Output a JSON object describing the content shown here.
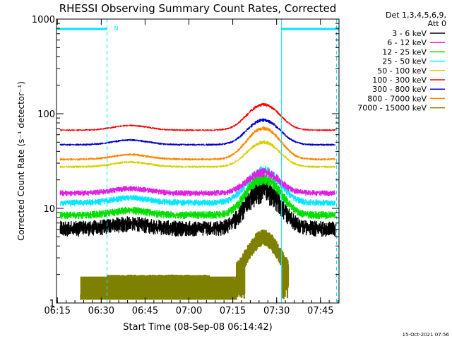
{
  "colors": {
    "background": "#ffffff",
    "axes": "#000000",
    "marker_lines": "#00e5ff"
  },
  "chart_data": {
    "type": "line",
    "title": "RHESSI Observing Summary Count Rates, Corrected",
    "xlabel": "Start Time (08-Sep-08 06:14:42)",
    "ylabel": "Corrected Count Rate (s⁻¹ detector⁻¹)",
    "y_scale": "log",
    "ylim": [
      1,
      1000
    ],
    "xlim": [
      "06:14:42",
      "07:51:20"
    ],
    "x_ticks": [
      "06:15",
      "06:30",
      "06:45",
      "07:00",
      "07:15",
      "07:30",
      "07:45"
    ],
    "y_ticks": [
      "1",
      "10",
      "100",
      "1000"
    ],
    "legend_header": [
      "Det 1,3,4,5,6,9,",
      "Att 0"
    ],
    "legend_position": "right, outside plot",
    "footer": "15-Oct-2021 07:56",
    "night_bars": [
      {
        "start": "06:14:42",
        "end": "06:32:00",
        "label": "N"
      },
      {
        "start": "07:31:40",
        "end": "07:51:20",
        "label": ""
      }
    ],
    "marker_times": [
      "06:14:42",
      "06:32:00",
      "07:31:40",
      "07:50:30"
    ],
    "series": [
      {
        "name": "3 - 6 keV",
        "color": "#000000",
        "base": 6.2,
        "peak": 16,
        "noise": 0.32,
        "start": "06:16:00",
        "end": "07:50:00"
      },
      {
        "name": "6 - 12 keV",
        "color": "#e020e0",
        "base": 14.5,
        "peak": 24,
        "noise": 0.12,
        "start": "06:16:00",
        "end": "07:50:00"
      },
      {
        "name": "12 - 25 keV",
        "color": "#00e000",
        "base": 8.5,
        "peak": 21,
        "noise": 0.16,
        "start": "06:16:00",
        "end": "07:50:00"
      },
      {
        "name": "25 - 50 keV",
        "color": "#00e8ff",
        "base": 11.5,
        "peak": 25,
        "noise": 0.13,
        "start": "06:16:00",
        "end": "07:50:00"
      },
      {
        "name": "50 - 100 keV",
        "color": "#d8d000",
        "base": 27.5,
        "peak": 50,
        "noise": 0.05,
        "start": "06:16:00",
        "end": "07:50:00"
      },
      {
        "name": "100 - 300 keV",
        "color": "#ff0000",
        "base": 67,
        "peak": 125,
        "noise": 0.04,
        "start": "06:16:00",
        "end": "07:50:00"
      },
      {
        "name": "300 - 800 keV",
        "color": "#0000d0",
        "base": 47,
        "peak": 86,
        "noise": 0.045,
        "start": "06:16:00",
        "end": "07:50:00"
      },
      {
        "name": "800 - 7000 keV",
        "color": "#ff8800",
        "base": 33,
        "peak": 70,
        "noise": 0.05,
        "start": "06:16:00",
        "end": "07:50:00"
      },
      {
        "name": "7000 - 15000 keV",
        "color": "#808000",
        "base": 1.9,
        "peak": 5,
        "noise": 0,
        "start": "06:23:00",
        "end": "07:34:00"
      }
    ]
  }
}
